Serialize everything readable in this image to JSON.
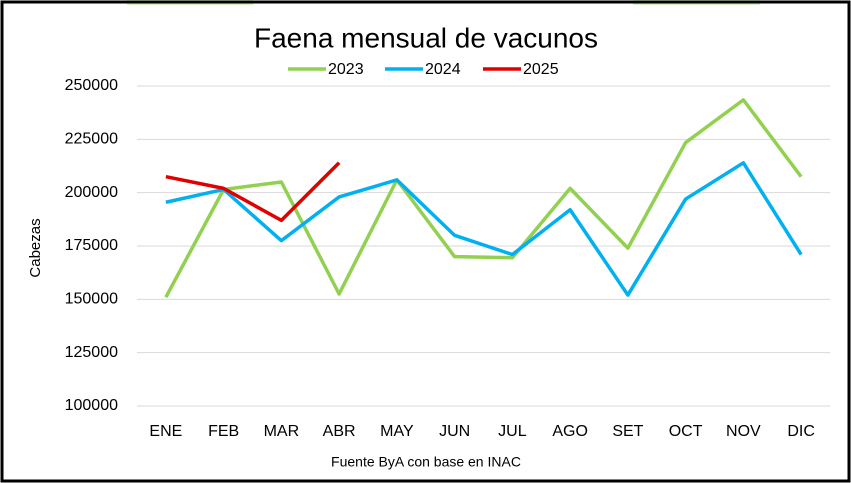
{
  "chart_data": {
    "type": "line",
    "title": "Faena mensual de vacunos",
    "y_label": "Cabezas",
    "source": "Fuente ByA con base en INAC",
    "categories": [
      "ENE",
      "FEB",
      "MAR",
      "ABR",
      "MAY",
      "JUN",
      "JUL",
      "AGO",
      "SET",
      "OCT",
      "NOV",
      "DIC"
    ],
    "series": [
      {
        "name": "2023",
        "color": "#92d050",
        "values": [
          151000,
          201500,
          205000,
          152500,
          206000,
          170000,
          169500,
          202000,
          174000,
          223500,
          243500,
          207500
        ]
      },
      {
        "name": "2024",
        "color": "#00b0f0",
        "values": [
          195500,
          201500,
          177500,
          198000,
          206000,
          180000,
          171000,
          192000,
          152000,
          197000,
          214000,
          171000
        ]
      },
      {
        "name": "2025",
        "color": "#e00000",
        "values": [
          207500,
          202000,
          187000,
          214000,
          null,
          null,
          null,
          null,
          null,
          null,
          null,
          null
        ]
      }
    ],
    "ylim": [
      100000,
      250000
    ],
    "yticks": [
      100000,
      125000,
      150000,
      175000,
      200000,
      225000,
      250000
    ],
    "grid": true,
    "legend": "top"
  }
}
